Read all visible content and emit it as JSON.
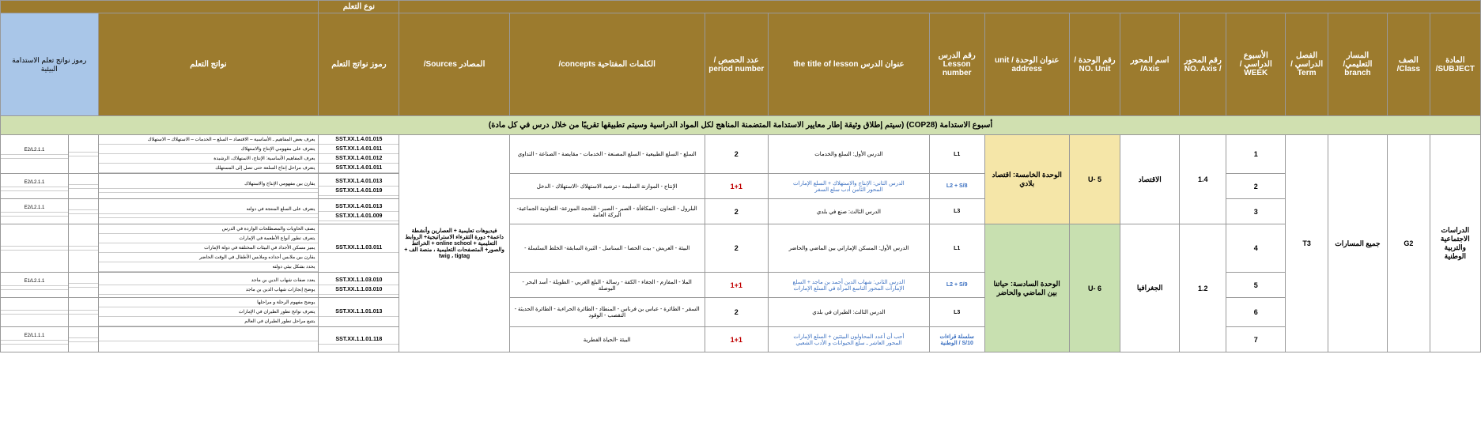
{
  "headers": {
    "subject": "المادة\nSUBJECT/",
    "class": "الصف\nClass/",
    "branch": "المسار التعليمي/\nbranch",
    "term": "الفصل\nالدراسي /\nTerm",
    "week": "الأسبوع الدراسي /\nWEEK",
    "axisNo": "رقم المحور /\nNO. Axis",
    "axis": "اسم المحور  Axis/",
    "unitNo": "رقم الوحدة /\nNO. Unit",
    "unitAddr": "عنوان الوحدة /\nunit  address",
    "lessonNo": "رقم الدرس\nLesson\nnumber",
    "lessonTitle": "عنوان الدرس  the title of lesson",
    "periods": "عدد الحصص /\nperiod number",
    "concepts": "الكلمات المفتاحية  concepts/",
    "sources": "المصادر  Sources/",
    "outcomeCodes": "رموز نواتج التعلم",
    "outcomes": "نواتج التعلم",
    "envCodes": "رموز نواتج تعلم الاستدامة البيئية",
    "learnType": "نوع التعلم"
  },
  "banner": "أسبوع الاستدامة (COP28)\n(سيتم إطلاق وثيقة إطار معايير الاستدامة المتضمنة المناهج لكل المواد الدراسية وسيتم تطبيقها تقريبًا من خلال درس في كل مادة)",
  "merged": {
    "subject": "الدراسات الاجتماعية والتربية الوطنية",
    "class": "G2",
    "branch": "جميع المسارات",
    "term": "T3",
    "sources": "فيديوهات تعليمية + العصارين وأنشطة داعمة+ دورة التقرءاء الاستراتيجية+ الروابط التعليمية + online school + الخرائط والصور+ المتصفحات التعليمية ، منصة الف + twig ، tigtag"
  },
  "units": {
    "u5": {
      "no": "U- 5",
      "addr": "الوحدة الخامسة: اقتصاد بلادي",
      "axisNo": "1.4",
      "axis": "الاقتصاد"
    },
    "u6": {
      "no": "U- 6",
      "addr": "الوحدة السادسة: حياتنا بين الماضي والحاضر",
      "axisNo": "1.2",
      "axis": "الجغرافيا"
    }
  },
  "rows": [
    {
      "week": "1",
      "lessonNo": "L1",
      "title": "الدرس الأول: السلع والخدمات",
      "periods": "2",
      "concepts": "السلع - السلع الطبيعية - السلع المصنعة - الخدمات - مقايضة - الصناعة - التداوي",
      "codes": [
        "SST.XX.1.4.01.015",
        "SST.XX.1.4.01.011",
        "SST.XX.1.4.01.012",
        "SST.XX.1.4.01.011"
      ],
      "outs": [
        "يعرف بعض المفاهيم ـ الأساسية – الاقتصاد – السلع – الخدمات – الاستهلاك – الاستهلاك",
        "يتعرف على مفهومي الإنتاج والاستهلاك",
        "يعرف المفاهيم الأساسية: الإنتاج، الاستهلاك، الرشيدة",
        "يتعرف مراحل إنتاج السلعة حتى تصل إلى المستهلك"
      ],
      "env": "E2/L2.1.1"
    },
    {
      "week": "2",
      "lessonNo": "L2 + S/8",
      "title": "الدرس الثاني: الإنتاج والاستهلاك + السلع الإمارات\nالمحور الثامن أدب سلع السفر",
      "titleClass": "lesson-link",
      "periods": "1+1",
      "periodsRed": true,
      "concepts": "الإنتاج - الموازنة السليمة - ترشيد الاستهلاك -الاستهلاك - الدخل",
      "codes": [
        "SST.XX.1.4.01.013",
        "SST.XX.1.4.01.019"
      ],
      "outs": [
        "يقارن بين مفهومي الإنتاج والاستهلاك"
      ],
      "env": "E2/L2.1.1"
    },
    {
      "week": "3",
      "lessonNo": "L3",
      "title": "الدرس الثالث: صنع في بلدي",
      "periods": "2",
      "concepts": "البلرول - التعاون - المكافأة - الصبر - الصبر - اللحجة الموزعة- التعاونية الجماعية- البركة العامة",
      "codes": [
        "SST.XX.1.4.01.013",
        "SST.XX.1.4.01.009"
      ],
      "outs": [
        "يتعرف على السلع المنتجة في دولته"
      ],
      "env": "E2/L2.1.1"
    },
    {
      "week": "4",
      "lessonNo": "L1",
      "title": "الدرس الأول: المسكن الإماراتي بين الماضي والحاضر",
      "periods": "2",
      "concepts": "البيئة - العريش - بيت الحصا - السناسل - الثبرة السابقة- الخلط السلسلة -",
      "codes": [
        "SST.XX.1.1.03.011"
      ],
      "outs": [
        "يصف الحاويات والمصطلحات الواردة في الدرس",
        "يتعرف تطور أنواع الأطعمة في الإمارات",
        "يميز مسكن الأجداد في البيئات المختلفة في دولة الإمارات",
        "يقارن بين ملابس أجداده وملابس الأطفال في الوقت الحاضر",
        "يحدد بشكل بيئي دولته"
      ],
      "env": ""
    },
    {
      "week": "5",
      "lessonNo": "L2 + S/9",
      "title": "الدرس الثاني: شهاب الدين أحمد بن ماجد + السلع\nالإمارات المحور التاسع المرأة في السلع الإمارات",
      "titleClass": "lesson-link",
      "periods": "1+1",
      "periodsRed": true,
      "concepts": "الملا - المفازم - الجغاء - الكفة - رسالة - البلع الغربي - الطويلة - أسد البحر - البوصلة",
      "codes": [
        "SST.XX.1.1.03.010",
        "SST.XX.1.1.03.010"
      ],
      "outs": [
        "يعدد صفات شهاب الدين بن ماجد",
        "يوضح إنجازات شهاب الدين بن ماجد"
      ],
      "env": "E1/L2.1.1"
    },
    {
      "week": "6",
      "lessonNo": "L3",
      "title": "الدرس الثالث: الطيران في بلدي",
      "periods": "2",
      "concepts": "السقر - الطائرة - عباس بن فرناس - المنطاد - الطائرة الحراءية - الطائرة الحديثة - التقصب - الوقود",
      "codes": [
        "SST.XX.1.1.01.013"
      ],
      "outs": [
        "يوضح مفهوم الرحلة و مراحلها",
        "يتعرف نواتج تطور الطيران في الإمارات",
        "يتتبع مراحل تطور الطيران في العالم"
      ],
      "env": ""
    },
    {
      "week": "7",
      "lessonNo": "سلسلة قراءات\nالوطنية / S/10",
      "title": "أحب أن أعدد المحاولون البيئتين + السلع الإمارات\nالمحور العاشر ـ سلع الحيوانات و الأدب الشعبي",
      "titleClass": "lesson-link",
      "periods": "1+1",
      "periodsRed": true,
      "concepts": "البيئة -الحياة الفطرية",
      "codes": [
        "SST.XX.1.1.01.118"
      ],
      "outs": [],
      "env": "E2/L1.1.1"
    }
  ]
}
